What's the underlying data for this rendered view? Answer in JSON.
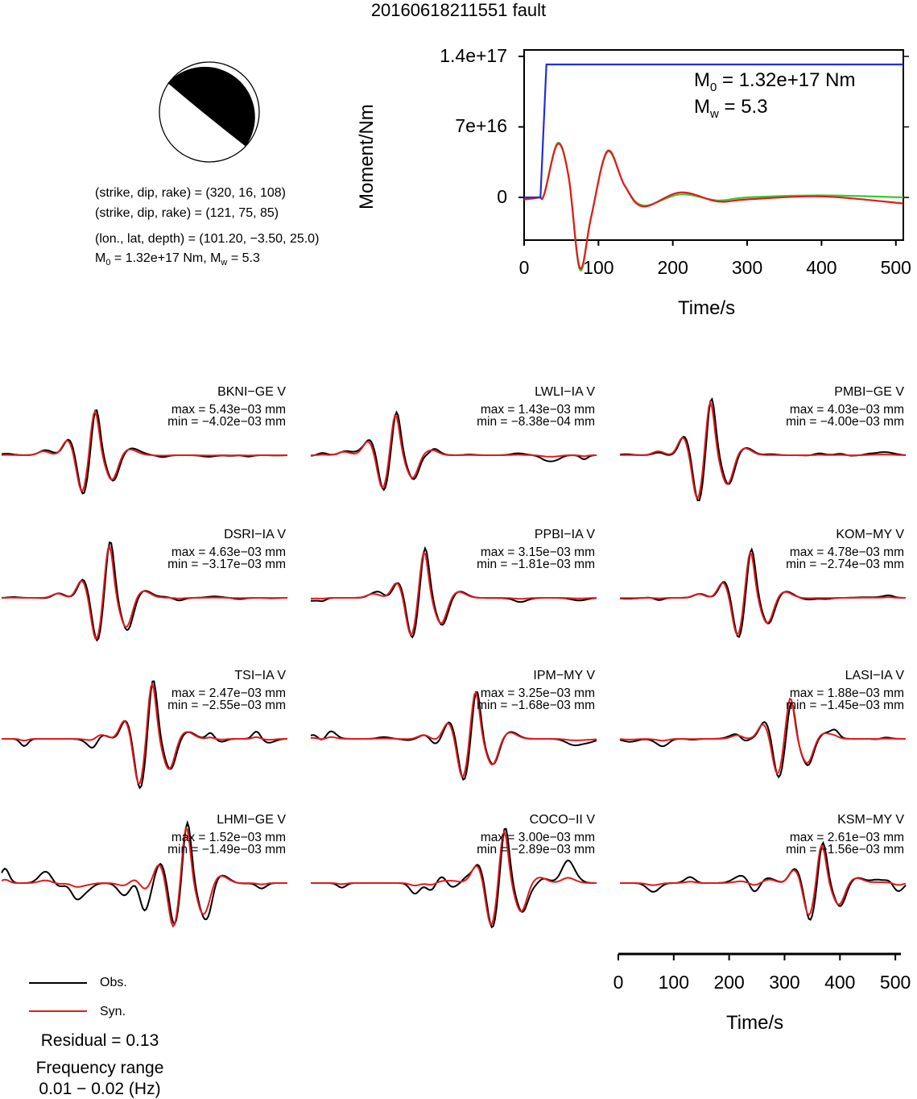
{
  "title": "20160618211551 fault",
  "colors": {
    "observed": "#000000",
    "synthetic": "#e31a1c",
    "moment": "#1f2fd6",
    "stf_green": "#33cc33"
  },
  "mechanism": {
    "line1": "(strike, dip, rake) = (320, 16, 108)",
    "line2": "(strike, dip, rake) = (121, 75, 85)",
    "line3": "(lon., lat, depth) = (101.20, −3.50, 25.0)",
    "m0_label": "M",
    "m0_sub": "0",
    "m0_value": " = 1.32e+17 Nm, M",
    "mw_sub": "w",
    "mw_value": " = 5.3"
  },
  "moment_panel": {
    "ylabel": "Moment/Nm",
    "xlabel": "Time/s",
    "yticks": [
      "1.4e+17",
      "7e+16",
      "0"
    ],
    "xticks": [
      "0",
      "100",
      "200",
      "300",
      "400",
      "500"
    ],
    "ann_m": "M",
    "ann_m0_sub": "0",
    "ann_m0_val": " = 1.32e+17 Nm",
    "ann_mw_sub": "w",
    "ann_mw_val": " = 5.3"
  },
  "waveform_axis": {
    "xlabel": "Time/s",
    "xticks": [
      "0",
      "100",
      "200",
      "300",
      "400",
      "500"
    ]
  },
  "legend": {
    "obs": "Obs.",
    "syn": "Syn."
  },
  "residual": "Residual = 0.13",
  "freq_title": "Frequency range",
  "freq_value": "0.01 − 0.02 (Hz)",
  "stations": [
    {
      "name": "BKNI−GE V",
      "max": "max = 5.43e−03 mm",
      "min": "min = −4.02e−03 mm"
    },
    {
      "name": "LWLI−IA V",
      "max": "max = 1.43e−03 mm",
      "min": "min = −8.38e−04 mm"
    },
    {
      "name": "PMBI−GE V",
      "max": "max = 4.03e−03 mm",
      "min": "min = −4.00e−03 mm"
    },
    {
      "name": "DSRI−IA V",
      "max": "max = 4.63e−03 mm",
      "min": "min = −3.17e−03 mm"
    },
    {
      "name": "PPBI−IA V",
      "max": "max = 3.15e−03 mm",
      "min": "min = −1.81e−03 mm"
    },
    {
      "name": "KOM−MY V",
      "max": "max = 4.78e−03 mm",
      "min": "min = −2.74e−03 mm"
    },
    {
      "name": "TSI−IA V",
      "max": "max = 2.47e−03 mm",
      "min": "min = −2.55e−03 mm"
    },
    {
      "name": "IPM−MY V",
      "max": "max = 3.25e−03 mm",
      "min": "min = −1.68e−03 mm"
    },
    {
      "name": "LASI−IA V",
      "max": "max = 1.88e−03 mm",
      "min": "min = −1.45e−03 mm"
    },
    {
      "name": "LHMI−GE V",
      "max": "max = 1.52e−03 mm",
      "min": "min = −1.49e−03 mm"
    },
    {
      "name": "COCO−II V",
      "max": "max = 3.00e−03 mm",
      "min": "min = −2.89e−03 mm"
    },
    {
      "name": "KSM−MY V",
      "max": "max = 2.61e−03 mm",
      "min": "min = −1.56e−03 mm"
    }
  ],
  "chart_data": [
    {
      "type": "line",
      "title": "",
      "xlabel": "Time/s",
      "ylabel": "Moment/Nm",
      "xlim": [
        0,
        510
      ],
      "ylim": [
        -5.6e+16,
        1.6e+17
      ],
      "series": [
        {
          "color": "#1f2fd6",
          "x": [
            0,
            22,
            30,
            510
          ],
          "y": [
            0,
            0,
            1.32e+17,
            1.32e+17
          ]
        },
        {
          "color": "#33cc33",
          "x": [
            0,
            20,
            27,
            45,
            60,
            75,
            90,
            112,
            135,
            160,
            210,
            260,
            300,
            400,
            510
          ],
          "y": [
            -2000000000000000.0,
            0,
            3000000000000000.0,
            5.4e+16,
            2e+16,
            -7.2e+16,
            -2e+16,
            4.5e+16,
            1.2e+16,
            -8000000000000000.0,
            3000000000000000.0,
            -3000000000000000.0,
            0,
            2000000000000000.0,
            0
          ]
        },
        {
          "color": "#e31a1c",
          "x": [
            0,
            20,
            27,
            45,
            60,
            75,
            90,
            112,
            135,
            160,
            210,
            260,
            300,
            400,
            510
          ],
          "y": [
            -2000000000000000.0,
            0,
            3000000000000000.0,
            5.3e+16,
            2e+16,
            -7e+16,
            -2e+16,
            4.6e+16,
            1.2e+16,
            -9000000000000000.0,
            5000000000000000.0,
            -4000000000000000.0,
            -2000000000000000.0,
            1000000000000000.0,
            -6000000000000000.0
          ]
        }
      ]
    },
    {
      "type": "line",
      "note_series": "12 station waveforms, observed (black) vs synthetic (red), normalized amplitude",
      "xlabel": "Time/s",
      "xlim": [
        0,
        510
      ]
    }
  ]
}
